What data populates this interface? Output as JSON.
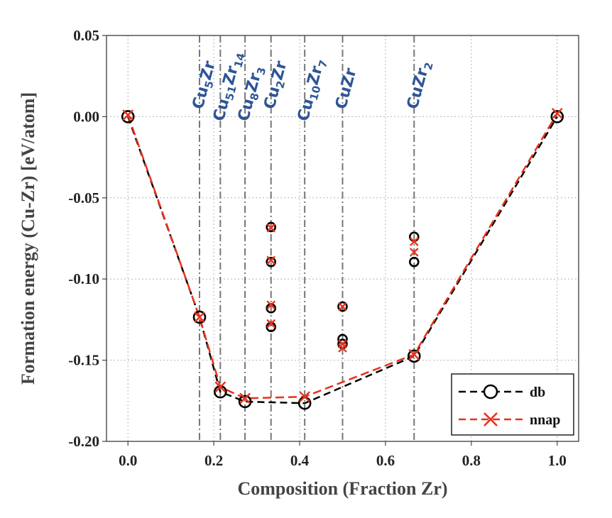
{
  "chart_data": {
    "type": "scatter",
    "xlabel": "Composition (Fraction Zr)",
    "ylabel": "Formation energy (Cu-Zr) [eV/atom]",
    "xlim": [
      -0.05,
      1.05
    ],
    "ylim": [
      -0.2,
      0.05
    ],
    "x_ticks": [
      "0.0",
      "0.2",
      "0.4",
      "0.6",
      "0.8",
      "1.0"
    ],
    "y_ticks": [
      "0.05",
      "0.00",
      "-0.05",
      "-0.10",
      "-0.15",
      "-0.20"
    ],
    "grid": true,
    "legend_position": "bottom-right",
    "colors": {
      "db": "#000000",
      "nnap": "#e8321c",
      "phase_labels": "#2e5597",
      "phase_lines": "#777777"
    },
    "phases": [
      {
        "x": 0.1667,
        "base": "Cu",
        "sub1": "5",
        "mid": "Zr",
        "sub2": "",
        "row": 1
      },
      {
        "x": 0.2152,
        "base": "Cu",
        "sub1": "51",
        "mid": "Zr",
        "sub2": "14",
        "row": 2
      },
      {
        "x": 0.2727,
        "base": "Cu",
        "sub1": "8",
        "mid": "Zr",
        "sub2": "3",
        "row": 2
      },
      {
        "x": 0.3333,
        "base": "Cu",
        "sub1": "2",
        "mid": "Zr",
        "sub2": "",
        "row": 1
      },
      {
        "x": 0.4118,
        "base": "Cu",
        "sub1": "10",
        "mid": "Zr",
        "sub2": "7",
        "row": 2
      },
      {
        "x": 0.5,
        "base": "Cu",
        "sub1": "",
        "mid": "Zr",
        "sub2": "",
        "row": 1
      },
      {
        "x": 0.6667,
        "base": "Cu",
        "sub1": "",
        "mid": "Zr",
        "sub2": "2",
        "row": 1
      }
    ],
    "series": [
      {
        "name": "db",
        "marker": "circle",
        "hull": [
          [
            0.0,
            0.0
          ],
          [
            0.1667,
            -0.1235
          ],
          [
            0.2152,
            -0.1695
          ],
          [
            0.2727,
            -0.1755
          ],
          [
            0.4118,
            -0.1765
          ],
          [
            0.6667,
            -0.1475
          ],
          [
            1.0,
            0.0
          ]
        ],
        "points": [
          [
            0.3333,
            -0.068
          ],
          [
            0.3333,
            -0.0895
          ],
          [
            0.3333,
            -0.118
          ],
          [
            0.3333,
            -0.1295
          ],
          [
            0.5,
            -0.117
          ],
          [
            0.5,
            -0.137
          ],
          [
            0.5,
            -0.14
          ],
          [
            0.6667,
            -0.074
          ],
          [
            0.6667,
            -0.0895
          ]
        ]
      },
      {
        "name": "nnap",
        "marker": "x",
        "hull": [
          [
            0.0,
            0.001
          ],
          [
            0.1667,
            -0.1235
          ],
          [
            0.2152,
            -0.1665
          ],
          [
            0.2727,
            -0.1735
          ],
          [
            0.4118,
            -0.1725
          ],
          [
            0.6667,
            -0.1465
          ],
          [
            1.0,
            0.002
          ]
        ],
        "points": [
          [
            0.3333,
            -0.0685
          ],
          [
            0.3333,
            -0.0885
          ],
          [
            0.3333,
            -0.116
          ],
          [
            0.3333,
            -0.1275
          ],
          [
            0.5,
            -0.117
          ],
          [
            0.5,
            -0.14
          ],
          [
            0.5,
            -0.1425
          ],
          [
            0.6667,
            -0.077
          ],
          [
            0.6667,
            -0.0835
          ]
        ]
      }
    ]
  }
}
